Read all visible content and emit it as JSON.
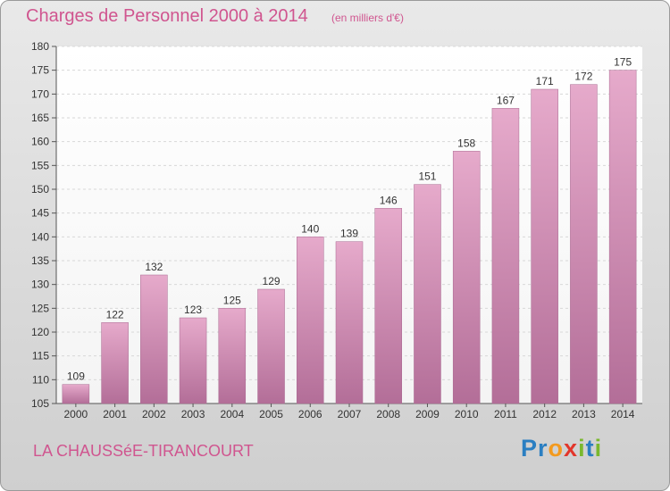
{
  "header": {
    "title": "Charges de Personnel 2000 à 2014",
    "unit_note": "(en milliers d'€)"
  },
  "footer": {
    "commune": "LA CHAUSSéE-TIRANCOURT",
    "logo_text": "Proxiti",
    "logo_letters": [
      {
        "ch": "P",
        "color": "#2b7fc2"
      },
      {
        "ch": "r",
        "color": "#2b7fc2"
      },
      {
        "ch": "o",
        "color": "#f39a1e"
      },
      {
        "ch": "x",
        "color": "#e2362b"
      },
      {
        "ch": "i",
        "color": "#7ab82e"
      },
      {
        "ch": "t",
        "color": "#2b7fc2"
      },
      {
        "ch": "i",
        "color": "#7ab82e"
      }
    ]
  },
  "chart_data": {
    "type": "bar",
    "title": "Charges de Personnel 2000 à 2014",
    "xlabel": "",
    "ylabel": "",
    "categories": [
      "2000",
      "2001",
      "2002",
      "2003",
      "2004",
      "2005",
      "2006",
      "2007",
      "2008",
      "2009",
      "2010",
      "2011",
      "2012",
      "2013",
      "2014"
    ],
    "values": [
      109,
      122,
      132,
      123,
      125,
      129,
      140,
      139,
      146,
      151,
      158,
      167,
      171,
      172,
      175
    ],
    "ylim": [
      105,
      180
    ],
    "yticks": [
      105,
      110,
      115,
      120,
      125,
      130,
      135,
      140,
      145,
      150,
      155,
      160,
      165,
      170,
      175,
      180
    ],
    "grid": true,
    "bar_color_top": "#e6aacb",
    "bar_color_bottom": "#b36e98",
    "plot_background": "#ffffff"
  }
}
